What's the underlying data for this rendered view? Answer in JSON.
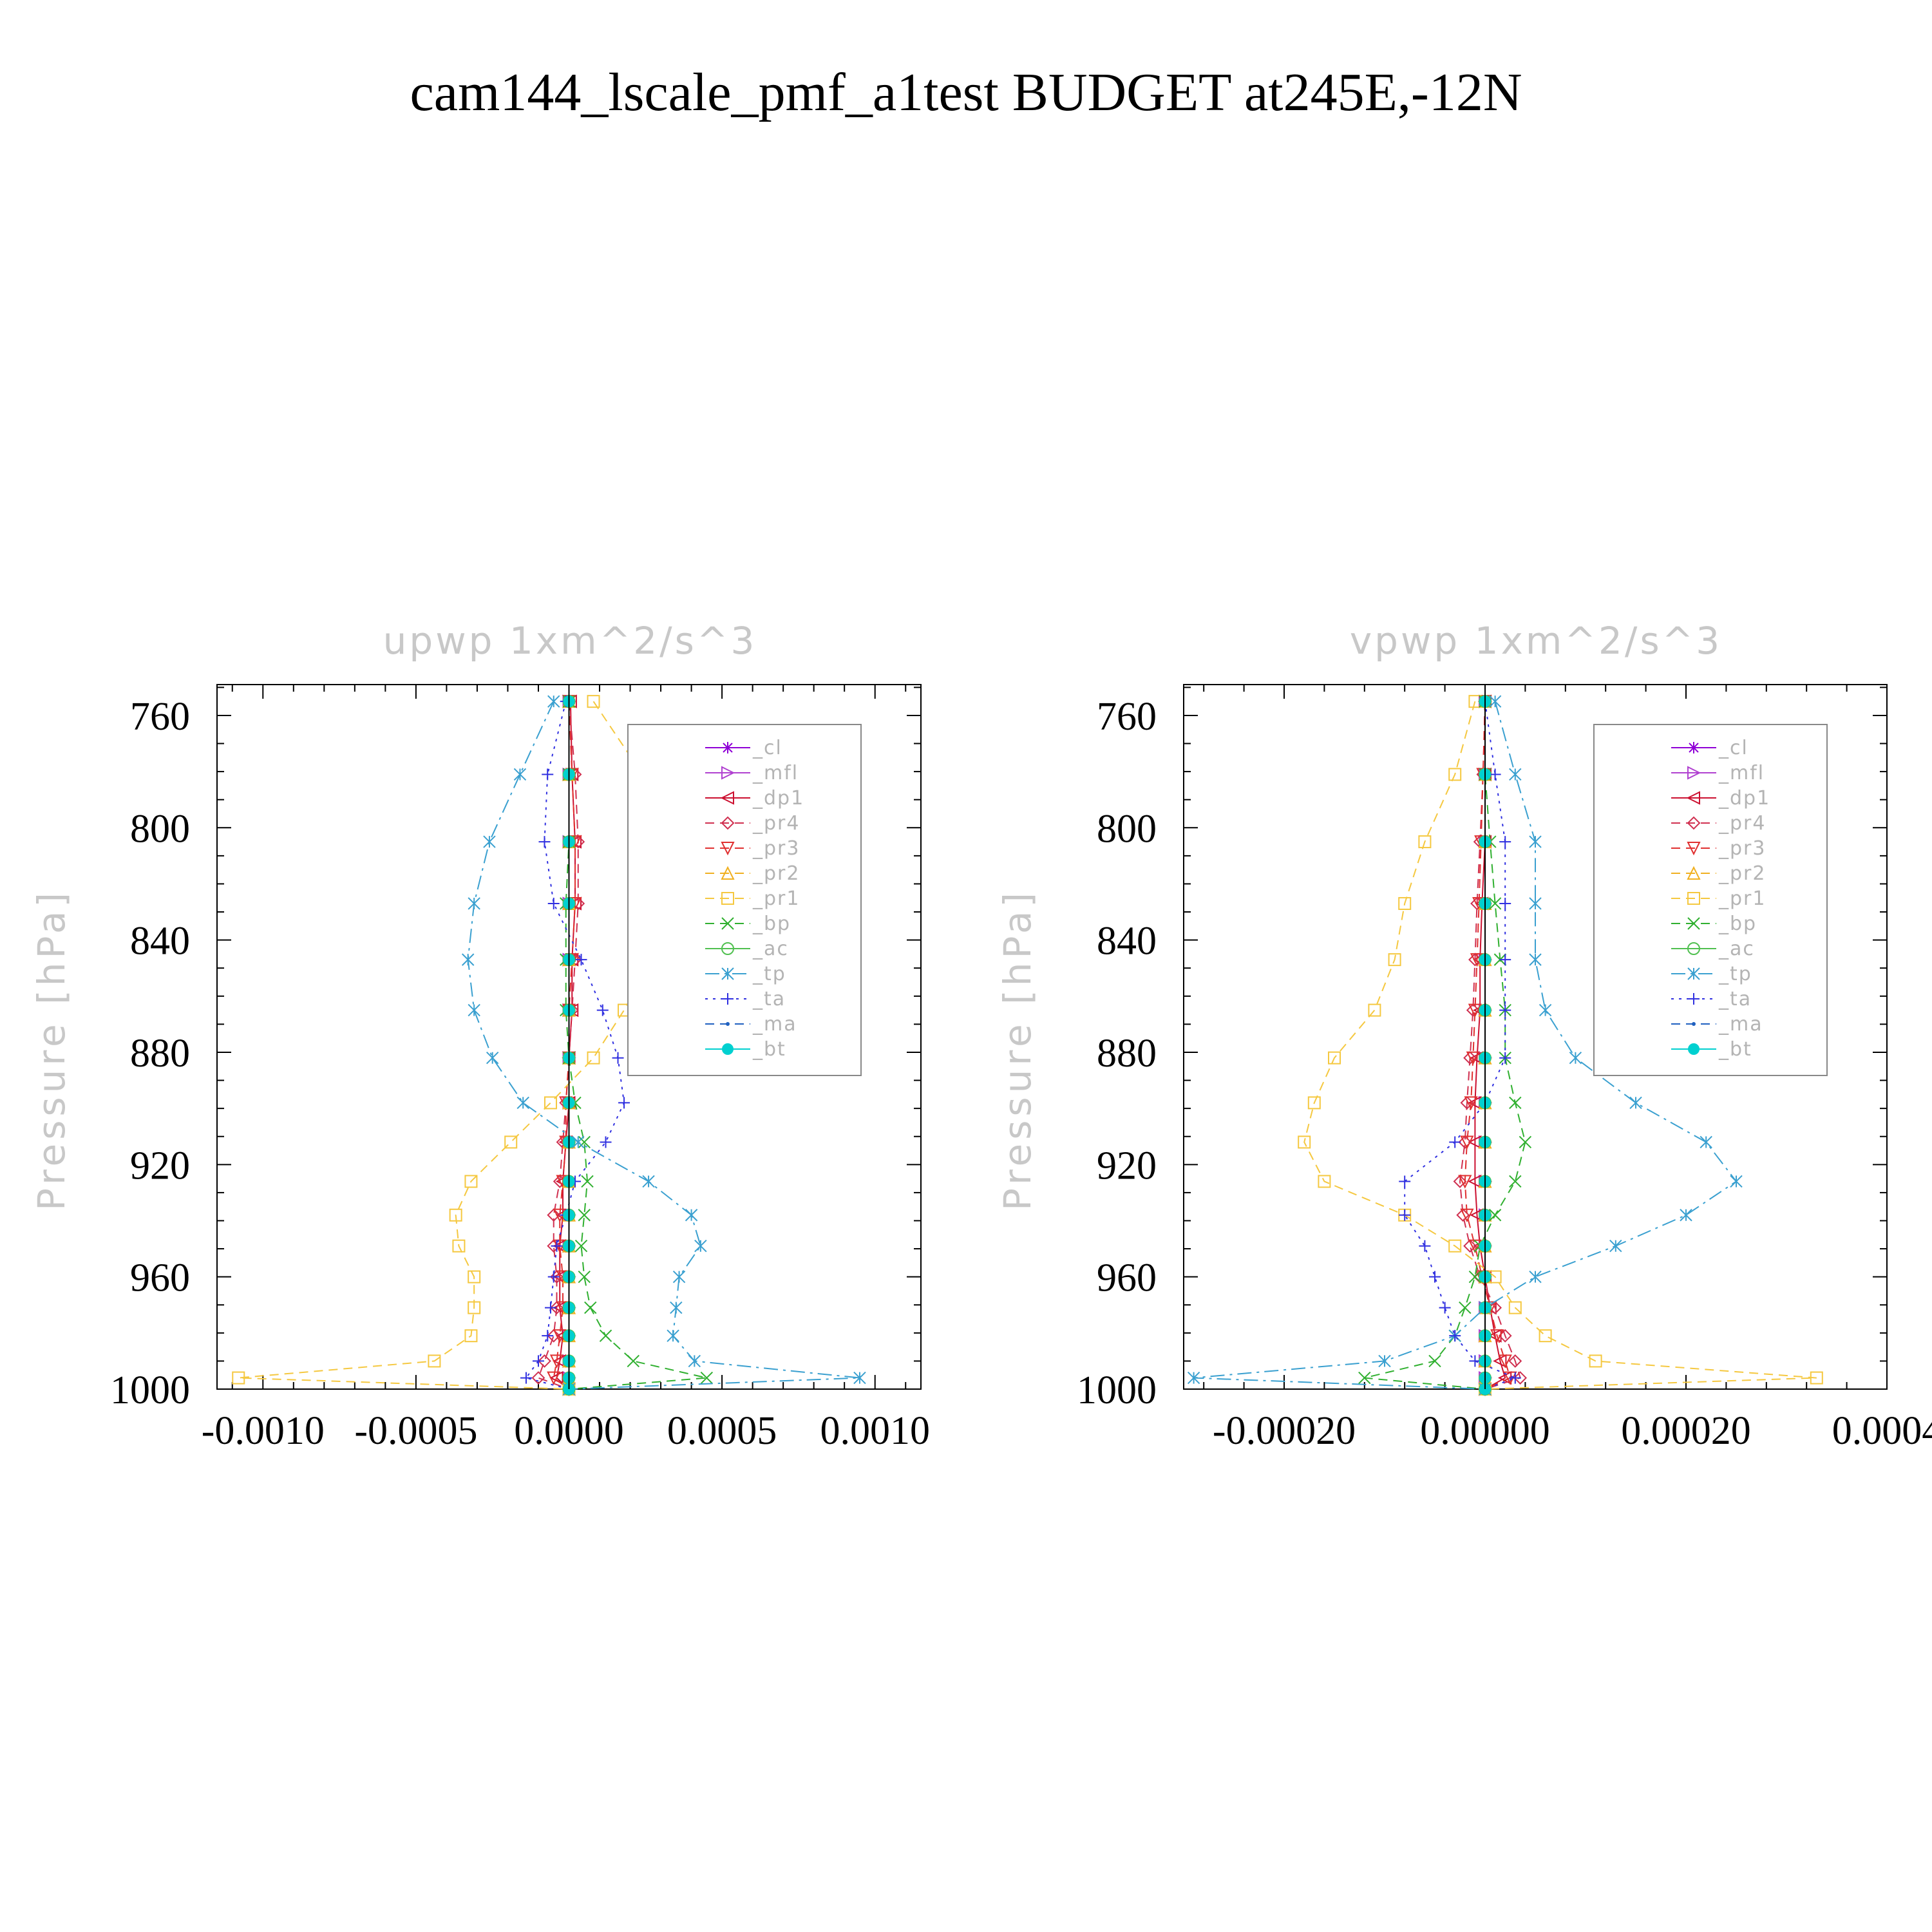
{
  "title": "cam144_lscale_pmf_a1test  BUDGET at245E,-12N",
  "chart_data": [
    {
      "type": "line",
      "title": "upwp   1xm^2/s^3",
      "xlabel": "",
      "ylabel": "Pressure  [hPa]",
      "xlim": [
        -0.00115,
        0.00115
      ],
      "ylim": [
        1000,
        749
      ],
      "xticks": [
        "-0.0010",
        "-0.0005",
        "0.0000",
        "0.0005",
        "0.0010"
      ],
      "xtick_values": [
        -0.001,
        -0.0005,
        0,
        0.0005,
        0.001
      ],
      "yticks": [
        760,
        800,
        840,
        880,
        920,
        960,
        1000
      ],
      "grid": false,
      "legend_position": "upper-right",
      "levels": [
        755,
        781,
        805,
        827,
        847,
        865,
        882,
        898,
        912,
        926,
        938,
        949,
        960,
        971,
        981,
        990,
        996,
        1000
      ],
      "series": [
        {
          "name": "_cl",
          "color": "#8f00d6",
          "marker": "star",
          "dash": "solid",
          "values": [
            0,
            0,
            0,
            0,
            0,
            0,
            0,
            0,
            0,
            0,
            0,
            0,
            0,
            0,
            0,
            0,
            0,
            0
          ]
        },
        {
          "name": "_mfl",
          "color": "#b040d0",
          "marker": "tri-right",
          "dash": "solid",
          "values": [
            0,
            0,
            0,
            0,
            0,
            0,
            0,
            0,
            0,
            0,
            0,
            0,
            0,
            0,
            0,
            0,
            0,
            0
          ]
        },
        {
          "name": "_dp1",
          "color": "#cc1030",
          "marker": "tri-left",
          "dash": "solid",
          "values": [
            5e-06,
            1e-05,
            2e-05,
            2e-05,
            1e-05,
            1e-05,
            0,
            0,
            -1e-05,
            -2e-05,
            -2e-05,
            -3e-05,
            -3e-05,
            -3e-05,
            -2e-05,
            -3e-05,
            -4e-05,
            0
          ]
        },
        {
          "name": "_pr4",
          "color": "#d03050",
          "marker": "diamond",
          "dash": "dash",
          "values": [
            0,
            2e-05,
            3e-05,
            3e-05,
            2e-05,
            1e-05,
            0,
            -1e-05,
            -2e-05,
            -3e-05,
            -5e-05,
            -5e-05,
            -4e-05,
            -4e-05,
            -5e-05,
            -8e-05,
            -0.0001,
            0
          ]
        },
        {
          "name": "_pr3",
          "color": "#e03030",
          "marker": "tri-down",
          "dash": "dash",
          "values": [
            0,
            1e-05,
            2e-05,
            2e-05,
            1e-05,
            0,
            0,
            -1e-05,
            -1e-05,
            -2e-05,
            -3e-05,
            -3e-05,
            -2e-05,
            -2e-05,
            -3e-05,
            -4e-05,
            -5e-05,
            0
          ]
        },
        {
          "name": "_pr2",
          "color": "#f0b020",
          "marker": "tri-up",
          "dash": "dash",
          "values": [
            0,
            0,
            0,
            0,
            0,
            0,
            0,
            0,
            0,
            0,
            0,
            0,
            0,
            0,
            0,
            0,
            0,
            0
          ]
        },
        {
          "name": "_pr1",
          "color": "#f5c840",
          "marker": "square",
          "dash": "dash",
          "values": [
            8e-05,
            0.00024,
            0.00033,
            0.00034,
            0.00027,
            0.00018,
            8e-05,
            -6e-05,
            -0.00019,
            -0.00032,
            -0.00037,
            -0.00036,
            -0.00031,
            -0.00031,
            -0.00032,
            -0.00044,
            -0.00108,
            0
          ]
        },
        {
          "name": "_bp",
          "color": "#30b030",
          "marker": "cross",
          "dash": "dash",
          "values": [
            0,
            0,
            0,
            -1e-05,
            -1e-05,
            -1e-05,
            0,
            2e-05,
            5e-05,
            6e-05,
            5e-05,
            4e-05,
            5e-05,
            7e-05,
            0.00012,
            0.00021,
            0.00045,
            0
          ]
        },
        {
          "name": "_ac",
          "color": "#50c050",
          "marker": "circle",
          "dash": "solid",
          "values": [
            0,
            0,
            0,
            0,
            0,
            0,
            0,
            0,
            0,
            0,
            0,
            0,
            0,
            0,
            0,
            0,
            0,
            0
          ]
        },
        {
          "name": "_tp",
          "color": "#3aa0d0",
          "marker": "asterisk",
          "dash": "dashdot",
          "values": [
            -5e-05,
            -0.00016,
            -0.00026,
            -0.00031,
            -0.00033,
            -0.00031,
            -0.00025,
            -0.00015,
            3e-05,
            0.00026,
            0.0004,
            0.00043,
            0.00036,
            0.00035,
            0.00034,
            0.00041,
            0.00095,
            0
          ]
        },
        {
          "name": "_ta",
          "color": "#3030e0",
          "marker": "plus",
          "dash": "dot",
          "values": [
            -1e-05,
            -7e-05,
            -8e-05,
            -5e-05,
            4e-05,
            0.00011,
            0.00016,
            0.00018,
            0.00012,
            2e-05,
            -1e-05,
            -4e-05,
            -5e-05,
            -6e-05,
            -7e-05,
            -0.0001,
            -0.00014,
            0
          ]
        },
        {
          "name": "_ma",
          "color": "#2060c0",
          "marker": "dot",
          "dash": "dash",
          "values": [
            0,
            0,
            0,
            0,
            0,
            0,
            0,
            0,
            0,
            0,
            0,
            0,
            0,
            0,
            0,
            0,
            0,
            0
          ]
        },
        {
          "name": "_bt",
          "color": "#00d0d0",
          "marker": "bigdot",
          "dash": "solid",
          "values": [
            0,
            0,
            0,
            0,
            0,
            0,
            0,
            0,
            0,
            0,
            0,
            0,
            0,
            0,
            0,
            0,
            0,
            0
          ]
        }
      ]
    },
    {
      "type": "line",
      "title": "vpwp   1xm^2/s^3",
      "xlabel": "",
      "ylabel": "Pressure  [hPa]",
      "xlim": [
        -0.0003,
        0.0004
      ],
      "ylim": [
        1000,
        749
      ],
      "xticks": [
        "-0.00020",
        "0.00000",
        "0.00020",
        "0.0004"
      ],
      "xtick_values": [
        -0.0002,
        0,
        0.0002,
        0.0004
      ],
      "yticks": [
        760,
        800,
        840,
        880,
        920,
        960,
        1000
      ],
      "grid": false,
      "legend_position": "upper-right",
      "levels": [
        755,
        781,
        805,
        827,
        847,
        865,
        882,
        898,
        912,
        926,
        938,
        949,
        960,
        971,
        981,
        990,
        996,
        1000
      ],
      "series": [
        {
          "name": "_cl",
          "color": "#8f00d6",
          "marker": "star",
          "dash": "solid",
          "values": [
            0,
            0,
            0,
            0,
            0,
            0,
            0,
            0,
            0,
            0,
            0,
            0,
            0,
            0,
            0,
            0,
            0,
            0
          ]
        },
        {
          "name": "_mfl",
          "color": "#b040d0",
          "marker": "tri-right",
          "dash": "solid",
          "values": [
            0,
            0,
            0,
            0,
            0,
            0,
            0,
            0,
            0,
            0,
            0,
            0,
            0,
            0,
            0,
            0,
            0,
            0
          ]
        },
        {
          "name": "_dp1",
          "color": "#cc1030",
          "marker": "tri-left",
          "dash": "solid",
          "values": [
            0,
            0,
            0,
            -3e-06,
            -5e-06,
            -5e-06,
            -8e-06,
            -1e-05,
            -1e-05,
            -1e-05,
            -8e-06,
            -5e-06,
            0,
            5e-06,
            1e-05,
            1.5e-05,
            2e-05,
            0
          ]
        },
        {
          "name": "_pr4",
          "color": "#d03050",
          "marker": "diamond",
          "dash": "dash",
          "values": [
            0,
            -2e-06,
            -5e-06,
            -8e-06,
            -1e-05,
            -1.2e-05,
            -1.5e-05,
            -1.8e-05,
            -2e-05,
            -2.5e-05,
            -2.2e-05,
            -1.5e-05,
            -5e-06,
            1e-05,
            2e-05,
            3e-05,
            3.5e-05,
            0
          ]
        },
        {
          "name": "_pr3",
          "color": "#e03030",
          "marker": "tri-down",
          "dash": "dash",
          "values": [
            0,
            -2e-06,
            -4e-06,
            -6e-06,
            -8e-06,
            -1e-05,
            -1.2e-05,
            -1.4e-05,
            -1.8e-05,
            -2e-05,
            -1.8e-05,
            -1e-05,
            -3e-06,
            5e-06,
            1.2e-05,
            2e-05,
            2.5e-05,
            0
          ]
        },
        {
          "name": "_pr2",
          "color": "#f0b020",
          "marker": "tri-up",
          "dash": "dash",
          "values": [
            0,
            0,
            0,
            0,
            0,
            0,
            0,
            0,
            0,
            0,
            0,
            0,
            0,
            0,
            0,
            0,
            0,
            0
          ]
        },
        {
          "name": "_pr1",
          "color": "#f5c840",
          "marker": "square",
          "dash": "dash",
          "values": [
            -1e-05,
            -3e-05,
            -6e-05,
            -8e-05,
            -9e-05,
            -0.00011,
            -0.00015,
            -0.00017,
            -0.00018,
            -0.00016,
            -8e-05,
            -3e-05,
            1e-05,
            3e-05,
            6e-05,
            0.00011,
            0.00033,
            0
          ]
        },
        {
          "name": "_bp",
          "color": "#30b030",
          "marker": "cross",
          "dash": "dash",
          "values": [
            0,
            0,
            5e-06,
            1e-05,
            1.5e-05,
            2e-05,
            2e-05,
            3e-05,
            4e-05,
            3e-05,
            1e-05,
            -5e-06,
            -1e-05,
            -2e-05,
            -3e-05,
            -5e-05,
            -0.00012,
            0
          ]
        },
        {
          "name": "_ac",
          "color": "#50c050",
          "marker": "circle",
          "dash": "solid",
          "values": [
            0,
            0,
            0,
            0,
            0,
            0,
            0,
            0,
            0,
            0,
            0,
            0,
            0,
            0,
            0,
            0,
            0,
            0
          ]
        },
        {
          "name": "_tp",
          "color": "#3aa0d0",
          "marker": "asterisk",
          "dash": "dashdot",
          "values": [
            1e-05,
            3e-05,
            5e-05,
            5e-05,
            5e-05,
            6e-05,
            9e-05,
            0.00015,
            0.00022,
            0.00025,
            0.0002,
            0.00013,
            5e-05,
            0,
            -3e-05,
            -0.0001,
            -0.00029,
            0
          ]
        },
        {
          "name": "_ta",
          "color": "#3030e0",
          "marker": "plus",
          "dash": "dot",
          "values": [
            0,
            1e-05,
            2e-05,
            2e-05,
            2e-05,
            2e-05,
            2e-05,
            0,
            -3e-05,
            -8e-05,
            -8e-05,
            -6e-05,
            -5e-05,
            -4e-05,
            -3e-05,
            -1e-05,
            3e-05,
            0
          ]
        },
        {
          "name": "_ma",
          "color": "#2060c0",
          "marker": "dot",
          "dash": "dash",
          "values": [
            0,
            0,
            0,
            0,
            0,
            0,
            0,
            0,
            0,
            0,
            0,
            0,
            0,
            0,
            0,
            0,
            0,
            0
          ]
        },
        {
          "name": "_bt",
          "color": "#00d0d0",
          "marker": "bigdot",
          "dash": "solid",
          "values": [
            0,
            0,
            0,
            0,
            0,
            0,
            0,
            0,
            0,
            0,
            0,
            0,
            0,
            0,
            0,
            0,
            0,
            0
          ]
        }
      ]
    }
  ]
}
